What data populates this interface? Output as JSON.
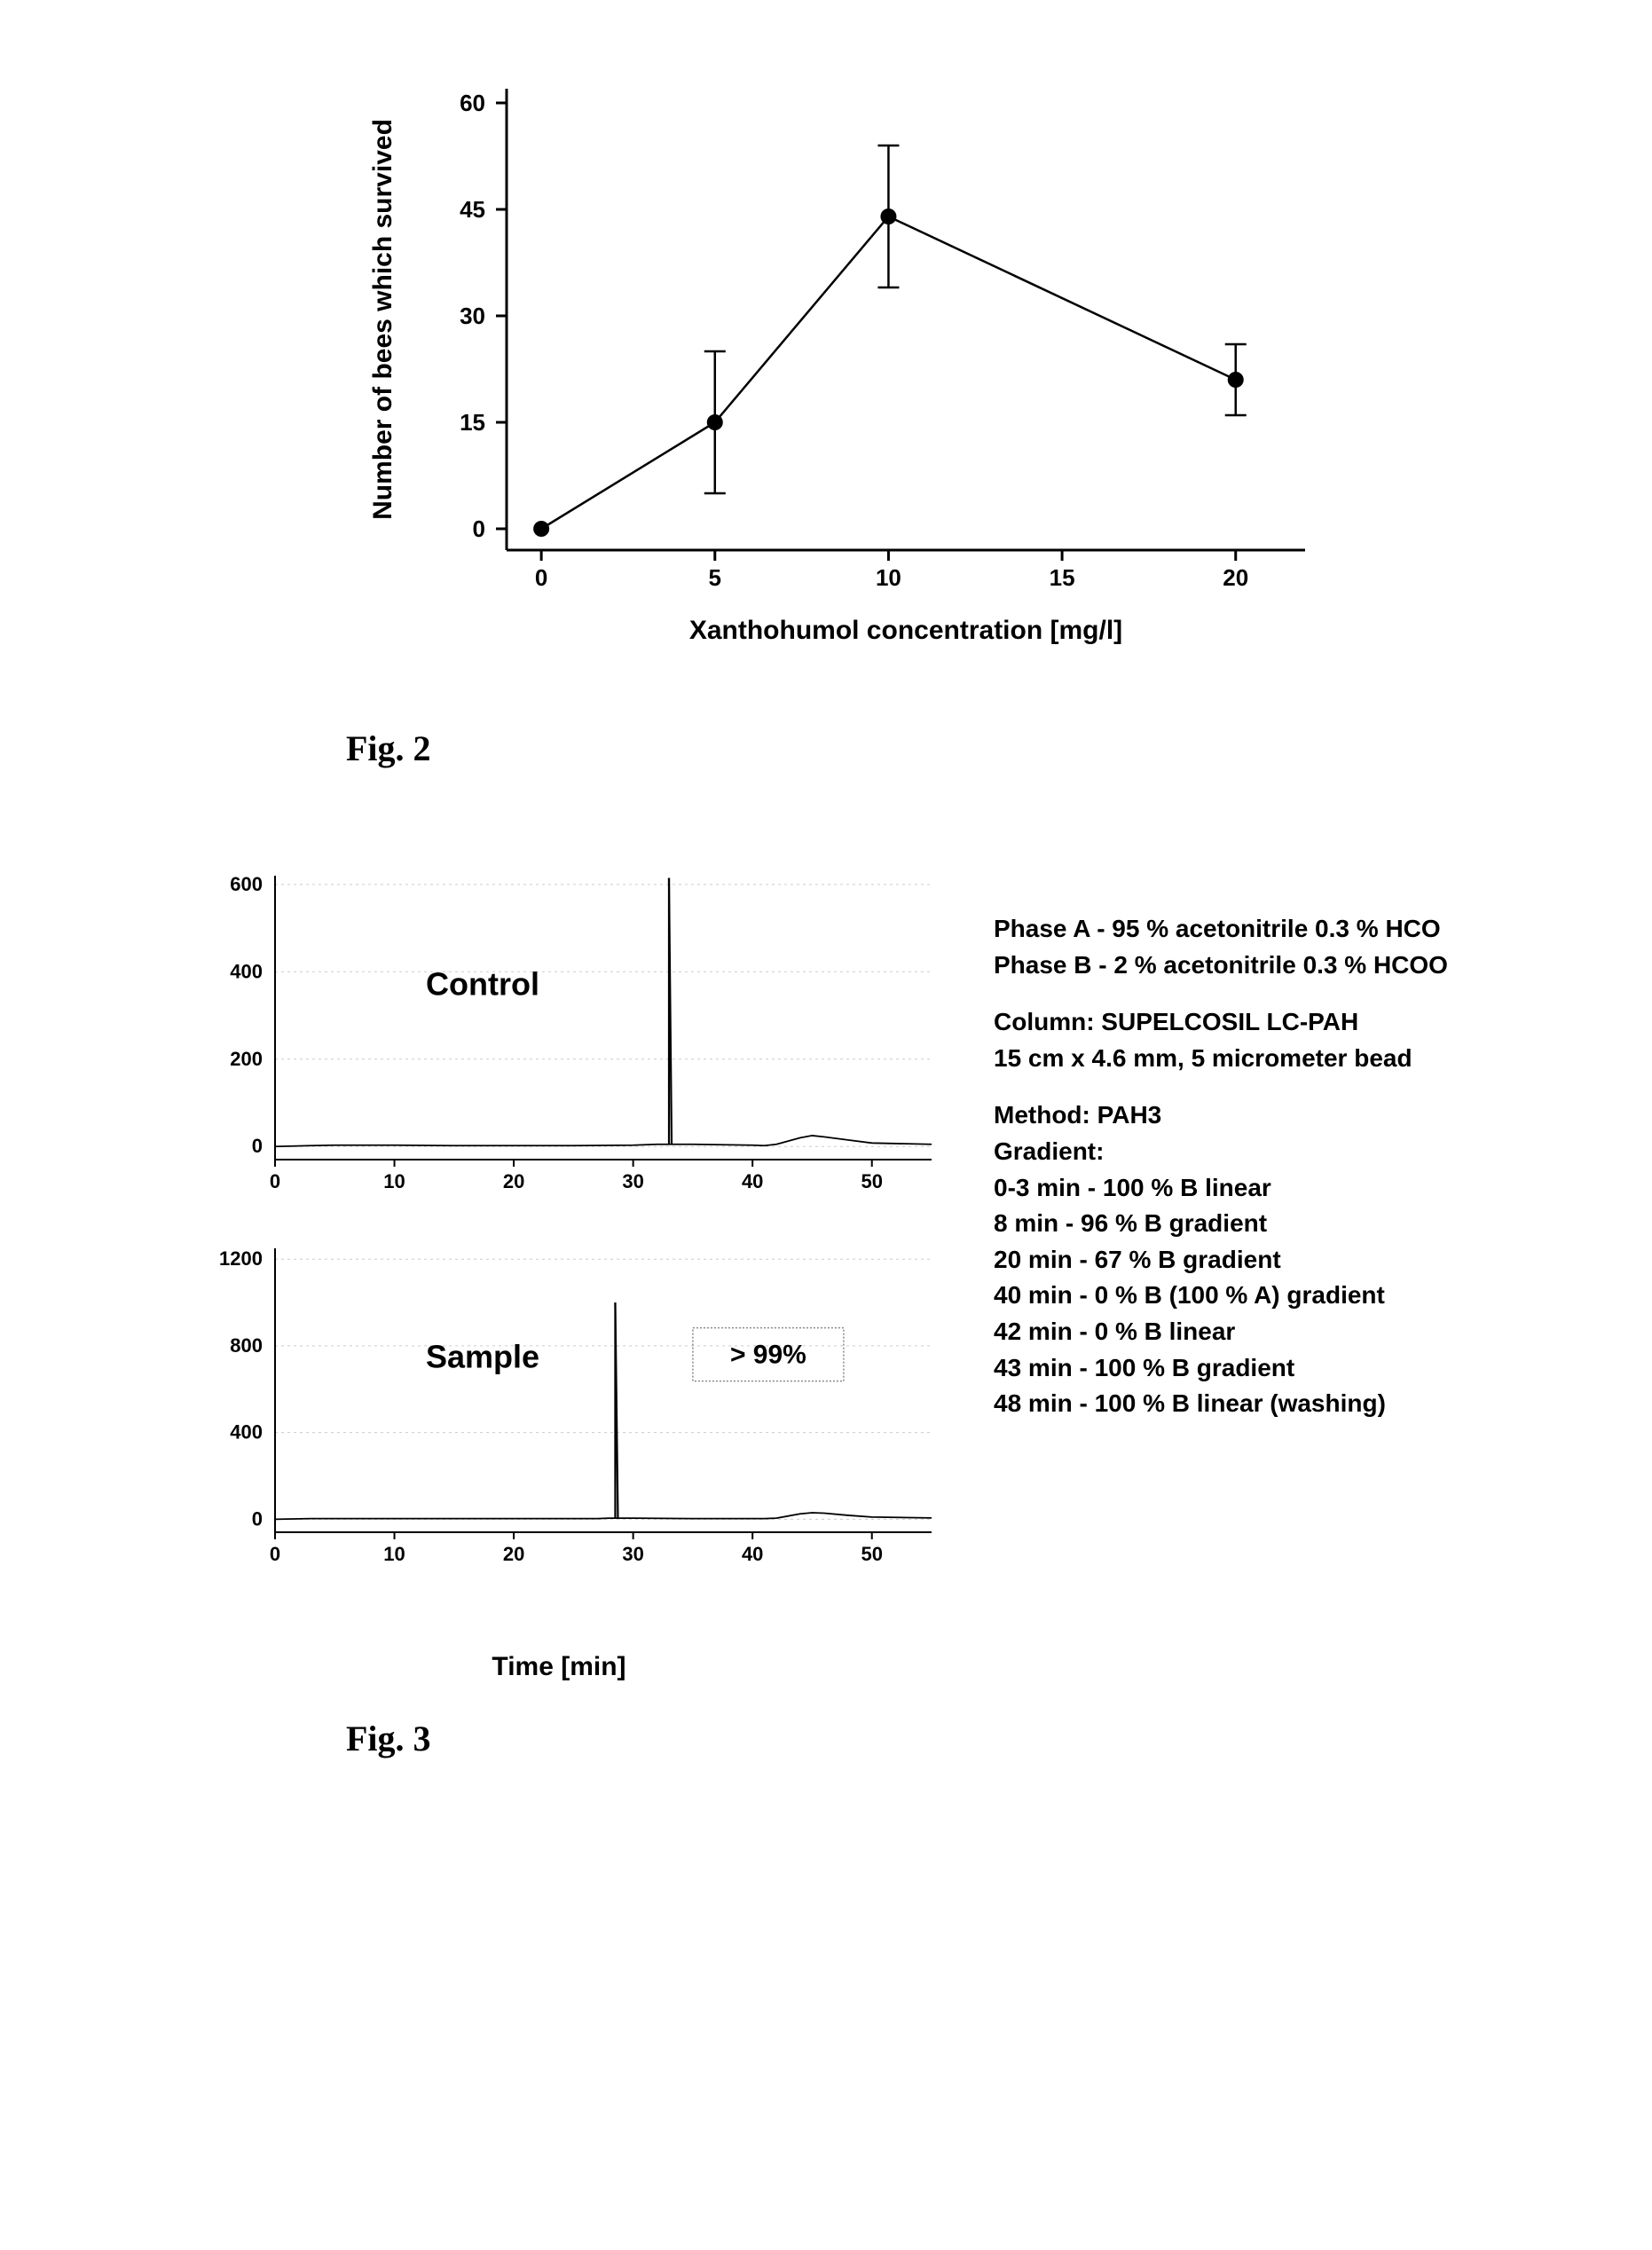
{
  "fig2": {
    "type": "line-scatter-errorbar",
    "caption": "Fig. 2",
    "ylabel": "Number of bees which survived",
    "xlabel": "Xanthohumol concentration [mg/l]",
    "xlim": [
      -1,
      22
    ],
    "ylim": [
      -3,
      62
    ],
    "xticks": [
      0,
      5,
      10,
      15,
      20
    ],
    "yticks": [
      0,
      15,
      30,
      45,
      60
    ],
    "data_x": [
      0,
      5,
      10,
      20
    ],
    "data_y": [
      0,
      15,
      44,
      21
    ],
    "err_lo": [
      0,
      10,
      10,
      5
    ],
    "err_hi": [
      0,
      10,
      10,
      5
    ],
    "marker_color": "#000000",
    "line_color": "#000000",
    "background_color": "#ffffff",
    "axis_color": "#000000",
    "marker_size": 9,
    "line_width": 2.5,
    "label_fontsize": 30,
    "tick_fontsize": 26
  },
  "fig3": {
    "type": "chromatogram-pair",
    "caption": "Fig. 3",
    "xlabel": "Time [min]",
    "control_label": "Control",
    "sample_label": "Sample",
    "purity_label": "> 99%",
    "control": {
      "xlim": [
        0,
        55
      ],
      "ylim": [
        -30,
        620
      ],
      "xticks": [
        0,
        10,
        20,
        30,
        40,
        50
      ],
      "yticks": [
        0,
        200,
        400,
        600
      ],
      "baseline": [
        [
          0,
          0
        ],
        [
          3,
          2
        ],
        [
          5,
          3
        ],
        [
          10,
          3
        ],
        [
          15,
          2
        ],
        [
          20,
          2
        ],
        [
          25,
          2
        ],
        [
          30,
          3
        ],
        [
          32,
          5
        ],
        [
          33,
          5
        ],
        [
          34,
          5
        ],
        [
          35,
          5
        ],
        [
          40,
          3
        ],
        [
          41,
          2
        ],
        [
          42,
          5
        ],
        [
          44,
          20
        ],
        [
          45,
          25
        ],
        [
          46,
          22
        ],
        [
          48,
          15
        ],
        [
          50,
          8
        ],
        [
          55,
          5
        ]
      ],
      "peak_x": 33,
      "peak_y": 615
    },
    "sample": {
      "xlim": [
        0,
        55
      ],
      "ylim": [
        -60,
        1250
      ],
      "xticks": [
        0,
        10,
        20,
        30,
        40,
        50
      ],
      "yticks": [
        0,
        400,
        800,
        1200
      ],
      "baseline": [
        [
          0,
          0
        ],
        [
          3,
          3
        ],
        [
          5,
          3
        ],
        [
          10,
          3
        ],
        [
          15,
          3
        ],
        [
          20,
          3
        ],
        [
          25,
          3
        ],
        [
          27,
          3
        ],
        [
          28,
          5
        ],
        [
          29,
          5
        ],
        [
          30,
          5
        ],
        [
          35,
          3
        ],
        [
          40,
          3
        ],
        [
          41,
          3
        ],
        [
          42,
          5
        ],
        [
          44,
          25
        ],
        [
          45,
          30
        ],
        [
          46,
          28
        ],
        [
          48,
          18
        ],
        [
          50,
          10
        ],
        [
          55,
          6
        ]
      ],
      "peak_x": 28.5,
      "peak_y": 1000
    },
    "colors": {
      "trace": "#000000",
      "grid": "#cccccc",
      "axis": "#000000",
      "background": "#ffffff",
      "box_border": "#888888"
    },
    "tick_fontsize": 22,
    "label_fontsize": 30,
    "method_text": {
      "phaseA": "Phase A - 95 % acetonitrile 0.3 % HCO",
      "phaseB": "Phase B - 2 % acetonitrile 0.3 % HCOO",
      "column1": "Column: SUPELCOSIL LC-PAH",
      "column2": "15 cm x 4.6 mm, 5 micrometer bead",
      "methodName": "Method: PAH3",
      "gradientTitle": "Gradient:",
      "g1": "0-3 min - 100 % B linear",
      "g2": "8 min - 96 % B gradient",
      "g3": "20 min - 67 % B gradient",
      "g4": "40 min - 0 % B (100 % A) gradient",
      "g5": "42 min - 0 % B linear",
      "g6": "43 min - 100 % B gradient",
      "g7": "48 min - 100 % B linear (washing)"
    }
  }
}
